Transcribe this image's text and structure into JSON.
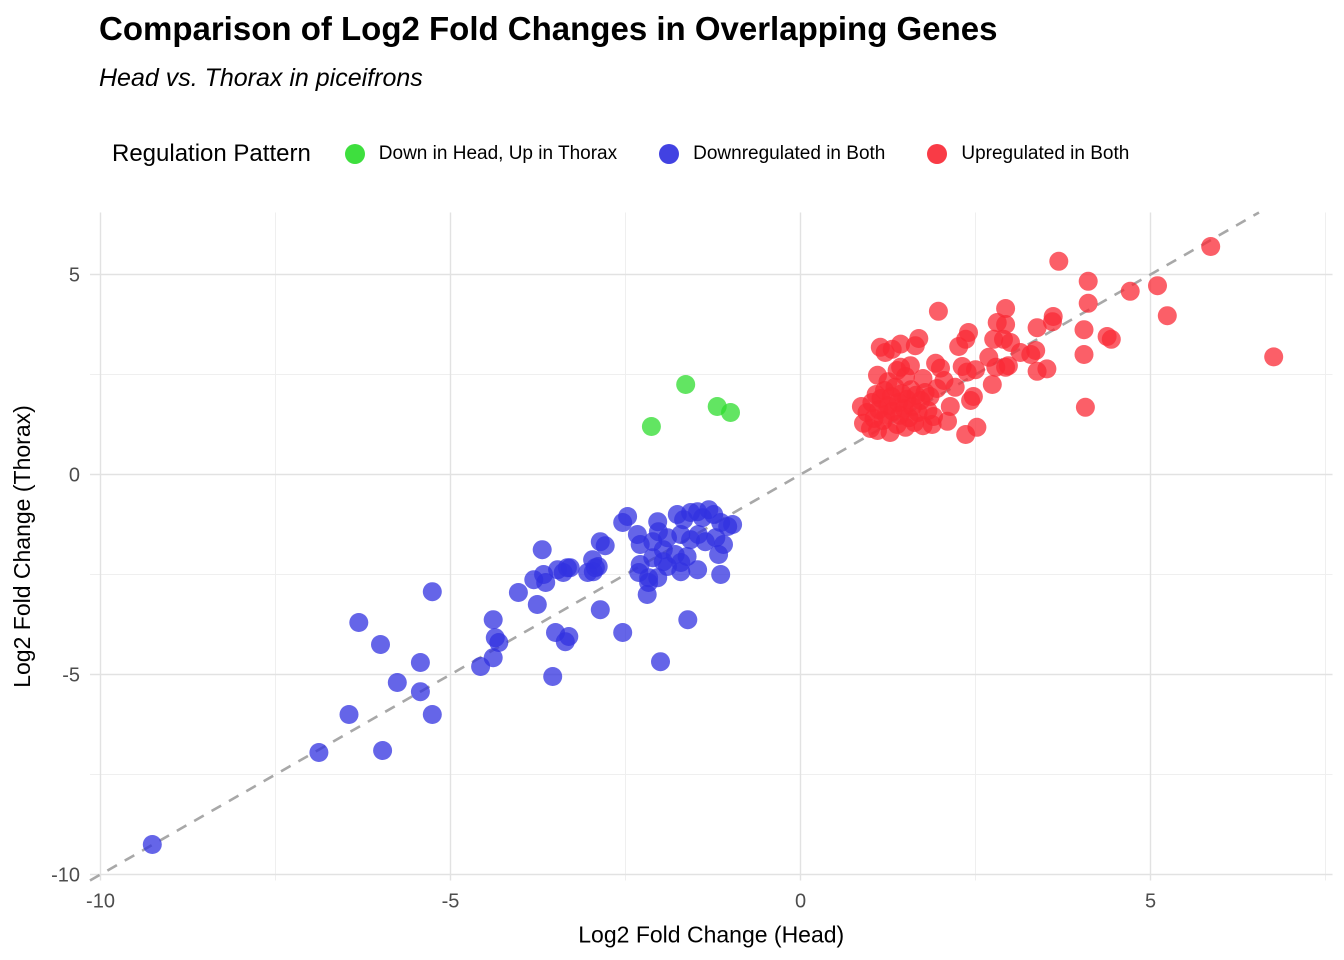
{
  "title": "Comparison of Log2 Fold Changes in Overlapping Genes",
  "subtitle": "Head vs. Thorax in piceifrons",
  "legend": {
    "title": "Regulation Pattern",
    "items": [
      {
        "label": "Down in Head, Up in Thorax",
        "color": "#2edc2e"
      },
      {
        "label": "Downregulated in Both",
        "color": "#3232e0"
      },
      {
        "label": "Upregulated in Both",
        "color": "#f92a36"
      }
    ]
  },
  "chart_data": {
    "type": "scatter",
    "title": "Comparison of Log2 Fold Changes in Overlapping Genes",
    "subtitle": "Head vs. Thorax in piceifrons",
    "xlabel": "Log2 Fold Change (Head)",
    "ylabel": "Log2 Fold Change (Thorax)",
    "xlim": [
      -10.15,
      7.6
    ],
    "ylim": [
      -10.15,
      6.55
    ],
    "xticks": [
      -10,
      -5,
      0,
      5
    ],
    "yticks": [
      -10,
      -5,
      0,
      5
    ],
    "xminor": [
      -7.5,
      -2.5,
      2.5,
      7.5
    ],
    "yminor": [
      -7.5,
      -2.5,
      2.5
    ],
    "grid": true,
    "legend_position": "top",
    "identity_line": {
      "show": true,
      "slope": 1,
      "intercept": 0,
      "style": "dashed",
      "color": "#a8a8a8"
    },
    "point_radius": 9.5,
    "point_opacity": 0.75,
    "series": [
      {
        "name": "Down in Head, Up in Thorax",
        "color": "#2edc2e",
        "points": [
          [
            -1.64,
            2.25
          ],
          [
            -2.13,
            1.2
          ],
          [
            -1.19,
            1.7
          ],
          [
            -1.0,
            1.55
          ]
        ]
      },
      {
        "name": "Downregulated in Both",
        "color": "#3232e0",
        "points": [
          [
            -2.86,
            -1.68
          ],
          [
            -2.79,
            -1.78
          ],
          [
            -2.89,
            -2.3
          ],
          [
            -2.96,
            -2.43
          ],
          [
            -2.47,
            -1.05
          ],
          [
            -2.54,
            -1.2
          ],
          [
            -2.33,
            -1.5
          ],
          [
            -2.29,
            -1.75
          ],
          [
            -2.04,
            -1.18
          ],
          [
            -2.03,
            -1.43
          ],
          [
            -2.11,
            -1.68
          ],
          [
            -1.9,
            -1.58
          ],
          [
            -1.76,
            -1.0
          ],
          [
            -1.67,
            -1.13
          ],
          [
            -1.57,
            -0.95
          ],
          [
            -1.47,
            -0.93
          ],
          [
            -1.4,
            -1.08
          ],
          [
            -1.31,
            -0.88
          ],
          [
            -1.24,
            -1.0
          ],
          [
            -1.14,
            -1.2
          ],
          [
            -1.04,
            -1.3
          ],
          [
            -0.97,
            -1.25
          ],
          [
            -1.71,
            -1.5
          ],
          [
            -1.57,
            -1.63
          ],
          [
            -1.46,
            -1.5
          ],
          [
            -1.36,
            -1.68
          ],
          [
            -1.21,
            -1.58
          ],
          [
            -1.1,
            -1.75
          ],
          [
            -1.96,
            -1.88
          ],
          [
            -1.79,
            -2.0
          ],
          [
            -1.62,
            -2.05
          ],
          [
            -2.11,
            -2.08
          ],
          [
            -2.29,
            -2.25
          ],
          [
            -1.9,
            -2.3
          ],
          [
            -1.71,
            -2.43
          ],
          [
            -1.47,
            -2.38
          ],
          [
            -1.14,
            -2.5
          ],
          [
            -2.17,
            -2.58
          ],
          [
            -1.17,
            -2.0
          ],
          [
            -1.96,
            -2.18
          ],
          [
            -1.71,
            -2.2
          ],
          [
            -3.29,
            -2.33
          ],
          [
            -2.97,
            -2.13
          ],
          [
            -2.93,
            -2.33
          ],
          [
            -2.31,
            -2.45
          ],
          [
            -2.17,
            -2.7
          ],
          [
            -2.04,
            -2.58
          ],
          [
            -2.19,
            -3.0
          ],
          [
            -2.86,
            -3.38
          ],
          [
            -2.54,
            -3.95
          ],
          [
            -3.31,
            -4.05
          ],
          [
            -1.61,
            -3.63
          ],
          [
            -2.0,
            -4.68
          ],
          [
            -5.26,
            -2.93
          ],
          [
            -3.69,
            -1.88
          ],
          [
            -3.81,
            -2.63
          ],
          [
            -3.64,
            -2.7
          ],
          [
            -3.39,
            -2.45
          ],
          [
            -3.04,
            -2.45
          ],
          [
            -4.03,
            -2.95
          ],
          [
            -3.76,
            -3.25
          ],
          [
            -4.39,
            -3.63
          ],
          [
            -4.36,
            -4.08
          ],
          [
            -4.31,
            -4.2
          ],
          [
            -4.39,
            -4.58
          ],
          [
            -4.57,
            -4.8
          ],
          [
            -3.5,
            -3.95
          ],
          [
            -3.36,
            -4.18
          ],
          [
            -3.54,
            -5.05
          ],
          [
            -5.43,
            -4.7
          ],
          [
            -5.76,
            -5.2
          ],
          [
            -5.43,
            -5.43
          ],
          [
            -5.26,
            -6.0
          ],
          [
            -3.47,
            -2.38
          ],
          [
            -3.33,
            -2.33
          ],
          [
            -3.67,
            -2.5
          ],
          [
            -6.31,
            -3.7
          ],
          [
            -6.0,
            -4.25
          ],
          [
            -6.45,
            -6.0
          ],
          [
            -6.88,
            -6.95
          ],
          [
            -5.97,
            -6.9
          ],
          [
            -9.26,
            -9.25
          ]
        ]
      },
      {
        "name": "Upregulated in Both",
        "color": "#f92a36",
        "points": [
          [
            5.86,
            5.7
          ],
          [
            5.1,
            4.72
          ],
          [
            5.24,
            3.97
          ],
          [
            6.76,
            2.94
          ],
          [
            4.71,
            4.58
          ],
          [
            3.69,
            5.33
          ],
          [
            4.11,
            4.83
          ],
          [
            4.11,
            4.28
          ],
          [
            4.05,
            3.62
          ],
          [
            4.38,
            3.45
          ],
          [
            4.44,
            3.38
          ],
          [
            4.05,
            3.0
          ],
          [
            4.07,
            1.68
          ],
          [
            3.6,
            3.82
          ],
          [
            3.38,
            3.67
          ],
          [
            3.61,
            3.95
          ],
          [
            2.93,
            4.15
          ],
          [
            2.93,
            3.75
          ],
          [
            2.9,
            3.38
          ],
          [
            3.0,
            3.3
          ],
          [
            3.14,
            3.05
          ],
          [
            3.29,
            3.0
          ],
          [
            3.36,
            3.1
          ],
          [
            2.93,
            2.68
          ],
          [
            3.38,
            2.58
          ],
          [
            3.52,
            2.64
          ],
          [
            1.97,
            4.08
          ],
          [
            1.14,
            3.18
          ],
          [
            1.31,
            3.13
          ],
          [
            1.43,
            3.26
          ],
          [
            1.69,
            3.4
          ],
          [
            2.36,
            3.38
          ],
          [
            2.4,
            3.55
          ],
          [
            2.81,
            3.8
          ],
          [
            2.76,
            3.38
          ],
          [
            1.21,
            3.05
          ],
          [
            1.64,
            3.22
          ],
          [
            2.26,
            3.2
          ],
          [
            2.69,
            2.93
          ],
          [
            1.43,
            2.68
          ],
          [
            1.57,
            2.72
          ],
          [
            1.93,
            2.78
          ],
          [
            2.0,
            2.66
          ],
          [
            2.31,
            2.7
          ],
          [
            2.5,
            2.62
          ],
          [
            2.79,
            2.68
          ],
          [
            2.97,
            2.72
          ],
          [
            2.38,
            2.56
          ],
          [
            1.38,
            2.6
          ],
          [
            2.47,
            1.95
          ],
          [
            2.43,
            1.85
          ],
          [
            2.14,
            1.7
          ],
          [
            2.1,
            1.33
          ],
          [
            2.52,
            1.18
          ],
          [
            1.88,
            1.25
          ],
          [
            2.21,
            2.18
          ],
          [
            2.74,
            2.25
          ],
          [
            2.36,
            1.0
          ],
          [
            0.87,
            1.7
          ],
          [
            0.9,
            1.28
          ],
          [
            0.95,
            1.55
          ],
          [
            1.0,
            1.15
          ],
          [
            1.02,
            1.8
          ],
          [
            1.05,
            1.4
          ],
          [
            1.08,
            2.0
          ],
          [
            1.1,
            1.1
          ],
          [
            1.12,
            1.62
          ],
          [
            1.15,
            1.9
          ],
          [
            1.18,
            1.35
          ],
          [
            1.2,
            2.1
          ],
          [
            1.22,
            1.5
          ],
          [
            1.25,
            1.72
          ],
          [
            1.28,
            1.05
          ],
          [
            1.3,
            1.95
          ],
          [
            1.32,
            1.58
          ],
          [
            1.35,
            2.18
          ],
          [
            1.38,
            1.25
          ],
          [
            1.4,
            1.8
          ],
          [
            1.42,
            1.48
          ],
          [
            1.45,
            2.02
          ],
          [
            1.48,
            1.65
          ],
          [
            1.5,
            1.18
          ],
          [
            1.52,
            1.88
          ],
          [
            1.55,
            1.42
          ],
          [
            1.58,
            2.12
          ],
          [
            1.6,
            1.7
          ],
          [
            1.63,
            1.3
          ],
          [
            1.65,
            1.98
          ],
          [
            1.68,
            1.55
          ],
          [
            1.72,
            1.85
          ],
          [
            1.75,
            1.22
          ],
          [
            1.78,
            2.05
          ],
          [
            1.82,
            1.6
          ],
          [
            1.85,
            1.95
          ],
          [
            1.9,
            1.45
          ],
          [
            1.95,
            2.15
          ],
          [
            1.25,
            2.32
          ],
          [
            1.5,
            2.45
          ],
          [
            1.75,
            2.4
          ],
          [
            2.05,
            2.35
          ],
          [
            1.1,
            2.48
          ]
        ]
      }
    ],
    "colors": {
      "green": "#2edc2e",
      "blue": "#3232e0",
      "red": "#f92a36"
    }
  }
}
